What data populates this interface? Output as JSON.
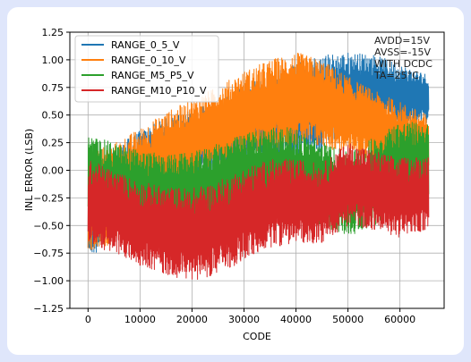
{
  "chart_data": {
    "type": "line",
    "title": "",
    "xlabel": "CODE",
    "ylabel": "INL ERROR (LSB)",
    "xlim": [
      -3500,
      68500
    ],
    "ylim": [
      -1.25,
      1.25
    ],
    "x_ticks": [
      0,
      10000,
      20000,
      30000,
      40000,
      50000,
      60000
    ],
    "y_ticks": [
      -1.25,
      -1.0,
      -0.75,
      -0.5,
      -0.25,
      0.0,
      0.25,
      0.5,
      0.75,
      1.0,
      1.25
    ],
    "x_tick_labels": [
      "0",
      "10000",
      "20000",
      "30000",
      "40000",
      "50000",
      "60000"
    ],
    "y_tick_labels": [
      "−1.25",
      "−1.00",
      "−0.75",
      "−0.50",
      "−0.25",
      "0.00",
      "0.25",
      "0.50",
      "0.75",
      "1.00",
      "1.25"
    ],
    "grid": true,
    "legend_position": "top-left",
    "annotations": [
      "AVDD=15V",
      "AVSS=-15V",
      "WITH DCDC",
      "TA=25°C"
    ],
    "annotation_position": "top-right",
    "series": [
      {
        "name": "RANGE_0_5_V",
        "color": "#1f77b4",
        "x": [
          0,
          5000,
          10000,
          15000,
          20000,
          25000,
          30000,
          35000,
          40000,
          45000,
          50000,
          55000,
          60000,
          65535
        ],
        "center": [
          -0.35,
          -0.22,
          -0.02,
          0.12,
          0.22,
          0.3,
          0.42,
          0.5,
          0.55,
          0.6,
          0.72,
          0.75,
          0.68,
          0.65
        ],
        "spread": [
          0.45,
          0.42,
          0.38,
          0.35,
          0.33,
          0.32,
          0.35,
          0.38,
          0.42,
          0.45,
          0.35,
          0.3,
          0.28,
          0.22
        ]
      },
      {
        "name": "RANGE_0_10_V",
        "color": "#ff7f0e",
        "x": [
          0,
          5000,
          10000,
          15000,
          20000,
          25000,
          30000,
          35000,
          40000,
          45000,
          50000,
          55000,
          60000,
          65535
        ],
        "center": [
          -0.3,
          -0.2,
          -0.02,
          0.15,
          0.28,
          0.4,
          0.5,
          0.58,
          0.65,
          0.6,
          0.5,
          0.4,
          0.3,
          0.2
        ],
        "spread": [
          0.48,
          0.45,
          0.4,
          0.38,
          0.36,
          0.36,
          0.4,
          0.42,
          0.42,
          0.4,
          0.35,
          0.32,
          0.32,
          0.3
        ]
      },
      {
        "name": "RANGE_M5_P5_V",
        "color": "#2ca02c",
        "x": [
          0,
          5000,
          10000,
          15000,
          20000,
          25000,
          30000,
          35000,
          40000,
          45000,
          50000,
          55000,
          60000,
          65535
        ],
        "center": [
          -0.1,
          -0.15,
          -0.2,
          -0.22,
          -0.2,
          -0.12,
          -0.05,
          0.0,
          -0.02,
          -0.12,
          -0.22,
          -0.1,
          0.05,
          0.1
        ],
        "spread": [
          0.42,
          0.4,
          0.38,
          0.36,
          0.36,
          0.36,
          0.38,
          0.4,
          0.4,
          0.38,
          0.38,
          0.4,
          0.4,
          0.32
        ]
      },
      {
        "name": "RANGE_M10_P10_V",
        "color": "#d62728",
        "x": [
          0,
          5000,
          10000,
          15000,
          20000,
          25000,
          30000,
          35000,
          40000,
          45000,
          50000,
          55000,
          60000,
          65535
        ],
        "center": [
          -0.28,
          -0.38,
          -0.48,
          -0.55,
          -0.58,
          -0.52,
          -0.4,
          -0.3,
          -0.28,
          -0.3,
          -0.12,
          -0.18,
          -0.25,
          -0.2
        ],
        "spread": [
          0.38,
          0.38,
          0.38,
          0.4,
          0.42,
          0.42,
          0.42,
          0.4,
          0.38,
          0.36,
          0.38,
          0.36,
          0.36,
          0.34
        ]
      }
    ]
  }
}
